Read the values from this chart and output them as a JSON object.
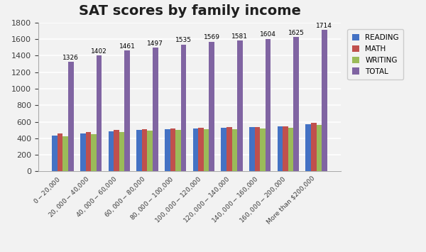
{
  "title": "SAT scores by family income",
  "categories": [
    "$0-$20,000",
    "$20,000 - $40,000",
    "$40,000 - $60,000",
    "$60,000 - $80,000",
    "$80,000 - $100,000",
    "$100,000 - $120,000",
    "$120,000 - $140,000",
    "$140,000 - $160,000",
    "$160,000 - $200,000",
    "More than $200,000"
  ],
  "series": {
    "READING": [
      433,
      463,
      487,
      499,
      509,
      519,
      528,
      535,
      543,
      567
    ],
    "MATH": [
      457,
      473,
      499,
      507,
      520,
      531,
      532,
      538,
      546,
      586
    ],
    "WRITING": [
      422,
      452,
      474,
      490,
      499,
      511,
      513,
      521,
      530,
      560
    ],
    "TOTAL": [
      1326,
      1402,
      1461,
      1497,
      1535,
      1569,
      1581,
      1604,
      1625,
      1714
    ]
  },
  "colors": {
    "READING": "#4472C4",
    "MATH": "#C0504D",
    "WRITING": "#9BBB59",
    "TOTAL": "#8064A2"
  },
  "ylim": [
    0,
    1800
  ],
  "yticks": [
    0,
    200,
    400,
    600,
    800,
    1000,
    1200,
    1400,
    1600,
    1800
  ],
  "background_color": "#F2F2F2",
  "plot_bg_color": "#F2F2F2",
  "grid_color": "#FFFFFF",
  "title_fontsize": 14
}
